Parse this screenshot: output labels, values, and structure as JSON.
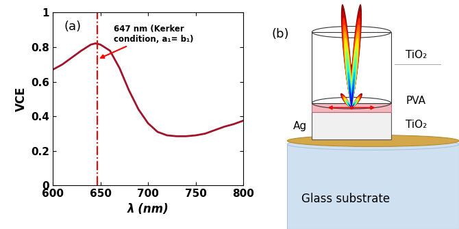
{
  "chart_data": {
    "type": "line",
    "panel_label": "(a)",
    "x_label": "λ (nm)",
    "y_label": "VCE",
    "x": [
      600,
      610,
      620,
      630,
      640,
      645,
      650,
      660,
      670,
      680,
      690,
      700,
      710,
      720,
      730,
      740,
      750,
      760,
      770,
      780,
      790,
      800
    ],
    "series": [
      {
        "name": "VCE",
        "color": "#a0142b",
        "values": [
          0.67,
          0.7,
          0.74,
          0.78,
          0.815,
          0.822,
          0.815,
          0.78,
          0.68,
          0.55,
          0.44,
          0.36,
          0.31,
          0.29,
          0.285,
          0.285,
          0.29,
          0.3,
          0.32,
          0.34,
          0.355,
          0.375
        ]
      }
    ],
    "xlim": [
      600,
      800
    ],
    "xticks": [
      600,
      650,
      700,
      750,
      800
    ],
    "ylim": [
      0,
      1
    ],
    "yticks": [
      0,
      0.2,
      0.4,
      0.6,
      0.8,
      1
    ],
    "annotations": [
      {
        "text": "647 nm (Kerker\ncondition, a₁= b₁)",
        "x": 647,
        "color": "#ff0000",
        "line_style": "dashdot"
      }
    ]
  },
  "diagram": {
    "panel_label": "(b)",
    "labels": {
      "upper_layer": "TiO₂",
      "spacer": "PVA",
      "lower_layer": "TiO₂",
      "mirror": "Ag",
      "substrate": "Glass substrate"
    }
  }
}
